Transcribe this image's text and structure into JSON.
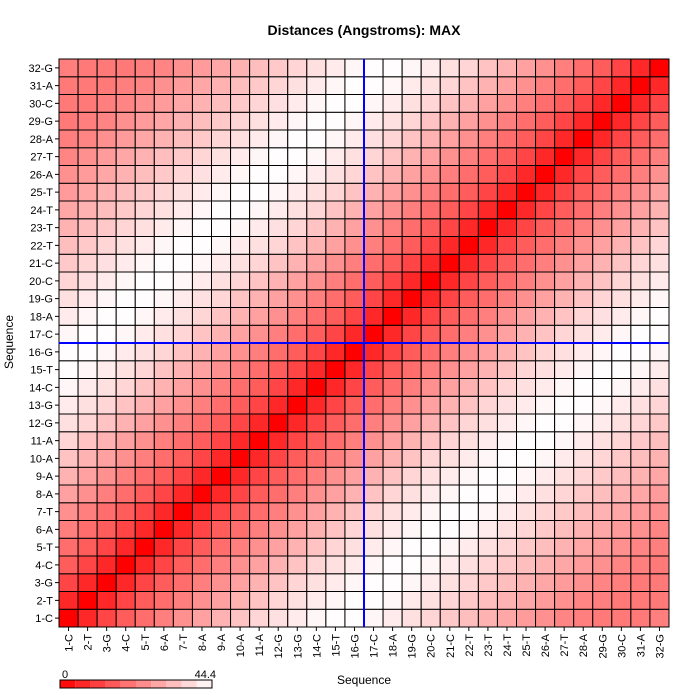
{
  "chart_data": {
    "type": "heatmap",
    "title": "Distances (Angstroms):  MAX",
    "xlabel": "Sequence",
    "ylabel": "Sequence",
    "labels": [
      "1-C",
      "2-T",
      "3-G",
      "4-C",
      "5-T",
      "6-A",
      "7-T",
      "8-A",
      "9-A",
      "10-A",
      "11-A",
      "12-G",
      "13-G",
      "14-C",
      "15-T",
      "16-G",
      "17-C",
      "18-A",
      "19-G",
      "20-C",
      "21-C",
      "22-T",
      "23-T",
      "24-T",
      "25-T",
      "26-A",
      "27-T",
      "28-A",
      "29-G",
      "30-C",
      "31-A",
      "32-G"
    ],
    "colorbar": {
      "min": 0,
      "max": 44.4,
      "min_label": "0",
      "max_label": "44.4"
    },
    "color_low": "#ff0000",
    "color_high": "#ffffff",
    "crosshair": {
      "x": "16-G",
      "y": "16-G",
      "color": "#0000ff"
    },
    "grid": true,
    "note_values": "Cell value = estimated distance; diagonal near 0, anti-correlated blocks near max",
    "values": [
      [
        0,
        7,
        12,
        16,
        19,
        22,
        25,
        28,
        31,
        34,
        37,
        39,
        41,
        43,
        44,
        44,
        43,
        41,
        39,
        37,
        35,
        33,
        31,
        29,
        27,
        25,
        23,
        22,
        21,
        21,
        21,
        22
      ],
      [
        7,
        0,
        7,
        12,
        16,
        19,
        22,
        25,
        28,
        31,
        34,
        37,
        39,
        41,
        43,
        44,
        44,
        43,
        41,
        39,
        37,
        35,
        33,
        31,
        29,
        27,
        25,
        23,
        22,
        21,
        21,
        21
      ],
      [
        12,
        7,
        0,
        7,
        12,
        16,
        19,
        22,
        25,
        28,
        31,
        34,
        37,
        39,
        41,
        43,
        44,
        44,
        43,
        41,
        39,
        37,
        35,
        33,
        31,
        29,
        27,
        25,
        23,
        22,
        21,
        21
      ],
      [
        16,
        12,
        7,
        0,
        7,
        12,
        16,
        19,
        22,
        25,
        28,
        31,
        34,
        37,
        39,
        41,
        43,
        44,
        44,
        43,
        41,
        39,
        37,
        35,
        33,
        31,
        29,
        27,
        25,
        23,
        22,
        21
      ],
      [
        19,
        16,
        12,
        7,
        0,
        7,
        12,
        16,
        19,
        22,
        25,
        28,
        31,
        34,
        37,
        39,
        41,
        43,
        44,
        44,
        43,
        41,
        39,
        37,
        35,
        33,
        31,
        29,
        27,
        25,
        23,
        22
      ],
      [
        22,
        19,
        16,
        12,
        7,
        0,
        7,
        12,
        16,
        19,
        22,
        25,
        28,
        31,
        34,
        37,
        39,
        41,
        43,
        44,
        44,
        43,
        41,
        39,
        37,
        35,
        33,
        31,
        29,
        27,
        25,
        23
      ],
      [
        25,
        22,
        19,
        16,
        12,
        7,
        0,
        7,
        12,
        16,
        19,
        22,
        25,
        28,
        31,
        34,
        37,
        39,
        41,
        43,
        44,
        44,
        43,
        41,
        39,
        37,
        35,
        33,
        31,
        29,
        27,
        25
      ],
      [
        28,
        25,
        22,
        19,
        16,
        12,
        7,
        0,
        7,
        12,
        16,
        19,
        22,
        25,
        28,
        31,
        34,
        37,
        39,
        41,
        43,
        44,
        44,
        43,
        41,
        39,
        37,
        35,
        33,
        31,
        29,
        27
      ],
      [
        31,
        28,
        25,
        22,
        19,
        16,
        12,
        7,
        0,
        7,
        12,
        16,
        19,
        22,
        25,
        28,
        31,
        34,
        37,
        39,
        41,
        43,
        44,
        44,
        43,
        41,
        39,
        37,
        35,
        33,
        31,
        29
      ],
      [
        34,
        31,
        28,
        25,
        22,
        19,
        16,
        12,
        7,
        0,
        7,
        12,
        16,
        19,
        22,
        25,
        28,
        31,
        34,
        37,
        39,
        41,
        43,
        44,
        44,
        43,
        41,
        39,
        37,
        35,
        33,
        31
      ],
      [
        37,
        34,
        31,
        28,
        25,
        22,
        19,
        16,
        12,
        7,
        0,
        7,
        12,
        16,
        19,
        22,
        25,
        28,
        31,
        34,
        37,
        39,
        41,
        43,
        44,
        44,
        43,
        41,
        39,
        37,
        35,
        33
      ],
      [
        39,
        37,
        34,
        31,
        28,
        25,
        22,
        19,
        16,
        12,
        7,
        0,
        7,
        12,
        16,
        19,
        22,
        25,
        28,
        31,
        34,
        37,
        39,
        41,
        43,
        44,
        44,
        43,
        41,
        39,
        37,
        35
      ],
      [
        41,
        39,
        37,
        34,
        31,
        28,
        25,
        22,
        19,
        16,
        12,
        7,
        0,
        7,
        12,
        16,
        19,
        22,
        25,
        28,
        31,
        34,
        37,
        39,
        41,
        43,
        44,
        44,
        43,
        41,
        39,
        37
      ],
      [
        43,
        41,
        39,
        37,
        34,
        31,
        28,
        25,
        22,
        19,
        16,
        12,
        7,
        0,
        7,
        12,
        16,
        19,
        22,
        25,
        28,
        31,
        34,
        37,
        39,
        41,
        43,
        44,
        44,
        43,
        41,
        39
      ],
      [
        44,
        43,
        41,
        39,
        37,
        34,
        31,
        28,
        25,
        22,
        19,
        16,
        12,
        7,
        0,
        7,
        12,
        16,
        19,
        22,
        25,
        28,
        31,
        34,
        37,
        39,
        41,
        43,
        44,
        44,
        43,
        41
      ],
      [
        44,
        44,
        43,
        41,
        39,
        37,
        34,
        31,
        28,
        25,
        22,
        19,
        16,
        12,
        7,
        0,
        7,
        12,
        16,
        19,
        22,
        25,
        28,
        31,
        34,
        37,
        39,
        41,
        43,
        44,
        44,
        43
      ],
      [
        43,
        44,
        44,
        43,
        41,
        39,
        37,
        34,
        31,
        28,
        25,
        22,
        19,
        16,
        12,
        7,
        0,
        7,
        12,
        16,
        19,
        22,
        25,
        28,
        31,
        34,
        37,
        39,
        41,
        43,
        44,
        44
      ],
      [
        41,
        43,
        44,
        44,
        43,
        41,
        39,
        37,
        34,
        31,
        28,
        25,
        22,
        19,
        16,
        12,
        7,
        0,
        7,
        12,
        16,
        19,
        22,
        25,
        28,
        31,
        34,
        37,
        39,
        41,
        43,
        44
      ],
      [
        39,
        41,
        43,
        44,
        44,
        43,
        41,
        39,
        37,
        34,
        31,
        28,
        25,
        22,
        19,
        16,
        12,
        7,
        0,
        7,
        12,
        16,
        19,
        22,
        25,
        28,
        31,
        34,
        37,
        39,
        41,
        43
      ],
      [
        37,
        39,
        41,
        43,
        44,
        44,
        43,
        41,
        39,
        37,
        34,
        31,
        28,
        25,
        22,
        19,
        16,
        12,
        7,
        0,
        7,
        12,
        16,
        19,
        22,
        25,
        28,
        31,
        34,
        37,
        39,
        41
      ],
      [
        35,
        37,
        39,
        41,
        43,
        44,
        44,
        43,
        41,
        39,
        37,
        34,
        31,
        28,
        25,
        22,
        19,
        16,
        12,
        7,
        0,
        7,
        12,
        16,
        19,
        22,
        25,
        28,
        31,
        34,
        37,
        39
      ],
      [
        33,
        35,
        37,
        39,
        41,
        43,
        44,
        44,
        43,
        41,
        39,
        37,
        34,
        31,
        28,
        25,
        22,
        19,
        16,
        12,
        7,
        0,
        7,
        12,
        16,
        19,
        22,
        25,
        28,
        31,
        34,
        37
      ],
      [
        31,
        33,
        35,
        37,
        39,
        41,
        43,
        44,
        44,
        43,
        41,
        39,
        37,
        34,
        31,
        28,
        25,
        22,
        19,
        16,
        12,
        7,
        0,
        7,
        12,
        16,
        19,
        22,
        25,
        28,
        31,
        34
      ],
      [
        29,
        31,
        33,
        35,
        37,
        39,
        41,
        43,
        44,
        44,
        43,
        41,
        39,
        37,
        34,
        31,
        28,
        25,
        22,
        19,
        16,
        12,
        7,
        0,
        7,
        12,
        16,
        19,
        22,
        25,
        28,
        31
      ],
      [
        27,
        29,
        31,
        33,
        35,
        37,
        39,
        41,
        43,
        44,
        44,
        43,
        41,
        39,
        37,
        34,
        31,
        28,
        25,
        22,
        19,
        16,
        12,
        7,
        0,
        7,
        12,
        16,
        19,
        22,
        25,
        28
      ],
      [
        25,
        27,
        29,
        31,
        33,
        35,
        37,
        39,
        41,
        43,
        44,
        44,
        43,
        41,
        39,
        37,
        34,
        31,
        28,
        25,
        22,
        19,
        16,
        12,
        7,
        0,
        7,
        12,
        16,
        19,
        22,
        25
      ],
      [
        23,
        25,
        27,
        29,
        31,
        33,
        35,
        37,
        39,
        41,
        43,
        44,
        44,
        43,
        41,
        39,
        37,
        34,
        31,
        28,
        25,
        22,
        19,
        16,
        12,
        7,
        0,
        7,
        12,
        16,
        19,
        22
      ],
      [
        22,
        23,
        25,
        27,
        29,
        31,
        33,
        35,
        37,
        39,
        41,
        43,
        44,
        44,
        43,
        41,
        39,
        37,
        34,
        31,
        28,
        25,
        22,
        19,
        16,
        12,
        7,
        0,
        7,
        12,
        16,
        19
      ],
      [
        21,
        22,
        23,
        25,
        27,
        29,
        31,
        33,
        35,
        37,
        39,
        41,
        43,
        44,
        44,
        43,
        41,
        39,
        37,
        34,
        31,
        28,
        25,
        22,
        19,
        16,
        12,
        7,
        0,
        7,
        12,
        16
      ],
      [
        21,
        21,
        22,
        23,
        25,
        27,
        29,
        31,
        33,
        35,
        37,
        39,
        41,
        43,
        44,
        44,
        43,
        41,
        39,
        37,
        34,
        31,
        28,
        25,
        22,
        19,
        16,
        12,
        7,
        0,
        7,
        12
      ],
      [
        21,
        21,
        21,
        22,
        23,
        25,
        27,
        29,
        31,
        33,
        35,
        37,
        39,
        41,
        43,
        44,
        44,
        43,
        41,
        39,
        37,
        34,
        31,
        28,
        25,
        22,
        19,
        16,
        12,
        7,
        0,
        7
      ],
      [
        22,
        21,
        21,
        21,
        22,
        23,
        25,
        27,
        29,
        31,
        33,
        35,
        37,
        39,
        41,
        43,
        44,
        44,
        43,
        41,
        39,
        37,
        34,
        31,
        28,
        25,
        22,
        19,
        16,
        12,
        7,
        0
      ]
    ]
  }
}
